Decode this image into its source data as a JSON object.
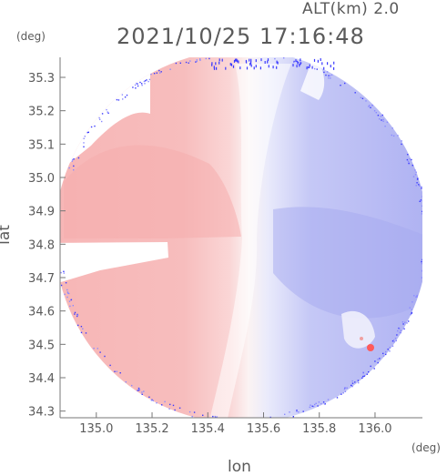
{
  "header": {
    "altitude": "ALT(km) 2.0",
    "timestamp": "2021/10/25 17:16:48",
    "y_unit": "(deg)",
    "x_unit": "(deg)"
  },
  "chart_data": {
    "type": "heatmap",
    "title": "",
    "xlabel": "lon",
    "ylabel": "lat",
    "xlim": [
      134.87,
      136.17
    ],
    "ylim": [
      34.28,
      35.36
    ],
    "x_ticks": [
      "135.0",
      "135.2",
      "135.4",
      "135.6",
      "135.8",
      "136.0"
    ],
    "y_ticks": [
      "34.3",
      "34.4",
      "34.5",
      "34.6",
      "34.7",
      "34.8",
      "34.9",
      "35.0",
      "35.1",
      "35.2",
      "35.3"
    ],
    "grid": false,
    "legend": "none",
    "radar_center": {
      "lon": 135.52,
      "lat": 34.81
    },
    "colors": {
      "west_sector": "#f6b5b5",
      "center_band": "#fbe9e9",
      "east_sector": "#aeb2f3",
      "near_white": "#f8f8fc",
      "edge_noise": "#3a3aff",
      "hot_spot": "#ff5a5a",
      "axis": "#777777"
    }
  }
}
